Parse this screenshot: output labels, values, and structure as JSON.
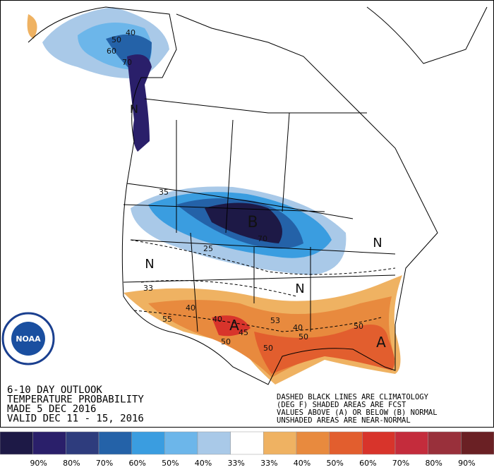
{
  "title_lines": [
    "6-10 DAY OUTLOOK",
    "TEMPERATURE PROBABILITY",
    "MADE  5 DEC 2016",
    "VALID  DEC 11 - 15, 2016"
  ],
  "notes": [
    "DASHED BLACK LINES ARE CLIMATOLOGY",
    "(DEG F) SHADED AREAS ARE FCST",
    "VALUES ABOVE (A) OR BELOW (B) NORMAL",
    "UNSHADED AREAS ARE NEAR-NORMAL"
  ],
  "logo": "NOAA",
  "map_labels": [
    "B",
    "A",
    "A",
    "N",
    "N",
    "N",
    "N",
    "50",
    "60",
    "70",
    "40",
    "35",
    "25",
    "70",
    "33",
    "40",
    "55",
    "40",
    "50",
    "45",
    "53",
    "40",
    "50",
    "50",
    "50"
  ],
  "legend": {
    "colors": [
      "#1d1946",
      "#2a1f6a",
      "#2e3c7d",
      "#2462a8",
      "#3a9de0",
      "#6cb6ea",
      "#a9c9e8",
      "#ffffff",
      "#efb262",
      "#e88a3e",
      "#e25e2e",
      "#d8342b",
      "#c42c3c",
      "#99303b",
      "#6a2024"
    ],
    "labels": [
      "90%",
      "80%",
      "70%",
      "60%",
      "50%",
      "40%",
      "33%",
      "33%",
      "40%",
      "50%",
      "60%",
      "70%",
      "80%",
      "90%"
    ]
  }
}
